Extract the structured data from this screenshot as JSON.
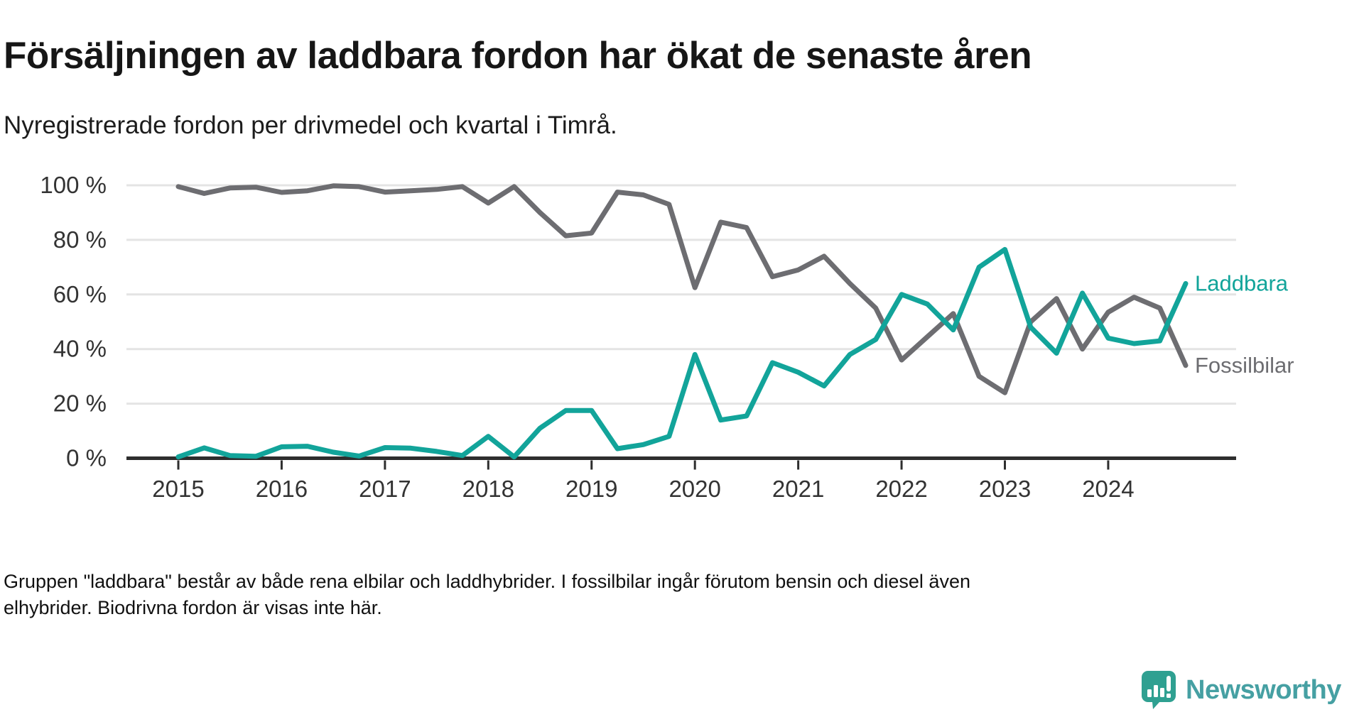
{
  "header": {
    "title": "Försäljningen av laddbara fordon har ökat de senaste åren",
    "subtitle": "Nyregistrerade fordon per drivmedel och kvartal i Timrå."
  },
  "chart_data": {
    "type": "line",
    "title": "Nyregistrerade fordon per drivmedel och kvartal i Timrå",
    "x_unit": "quarter",
    "x_start": "2015-Q1",
    "x_end": "2024-Q4",
    "x_tick_labels": [
      "2015",
      "2016",
      "2017",
      "2018",
      "2019",
      "2020",
      "2021",
      "2022",
      "2023",
      "2024"
    ],
    "y_ticks": [
      0,
      20,
      40,
      60,
      80,
      100
    ],
    "y_tick_labels": [
      "0 %",
      "20 %",
      "40 %",
      "60 %",
      "80 %",
      "100 %"
    ],
    "ylim": [
      0,
      100
    ],
    "grid": "horizontal",
    "legend_position": "line-end-right",
    "series": [
      {
        "name": "Laddbara",
        "color": "#12a49a",
        "values": [
          0.5,
          3.8,
          1,
          0.7,
          4.2,
          4.4,
          2.2,
          0.8,
          3.9,
          3.7,
          2.5,
          1,
          8,
          0.5,
          11,
          17.5,
          17.5,
          3.5,
          5,
          8,
          38,
          14,
          15.5,
          35,
          31.5,
          26.5,
          38,
          43.5,
          60,
          56.5,
          47,
          70,
          76.5,
          48,
          38.5,
          60.5,
          44,
          42,
          43,
          64
        ]
      },
      {
        "name": "Fossilbilar",
        "color": "#6d6d71",
        "values": [
          99.5,
          97,
          99,
          99.3,
          97.4,
          98,
          99.8,
          99.5,
          97.5,
          98,
          98.5,
          99.5,
          93.5,
          99.5,
          90,
          81.5,
          82.5,
          97.5,
          96.5,
          93,
          62.5,
          86.5,
          84.5,
          66.5,
          69,
          74,
          64,
          55,
          36,
          44.5,
          53,
          30,
          24,
          50,
          58.5,
          40,
          53.5,
          59,
          55,
          34
        ]
      }
    ]
  },
  "footer": {
    "line1": "Gruppen \"laddbara\" består av både rena elbilar och laddhybrider. I fossilbilar ingår förutom bensin och diesel även",
    "line2": "elhybrider. Biodrivna fordon är visas inte här."
  },
  "logo": {
    "text": "Newsworthy",
    "icon": "bar-chart-speech-bubble-icon",
    "bubble_color": "#2fa091",
    "text_color": "#46a0a3"
  },
  "colors": {
    "axis": "#2e2e2e",
    "grid": "#e4e4e4",
    "tick_label": "#333333"
  }
}
